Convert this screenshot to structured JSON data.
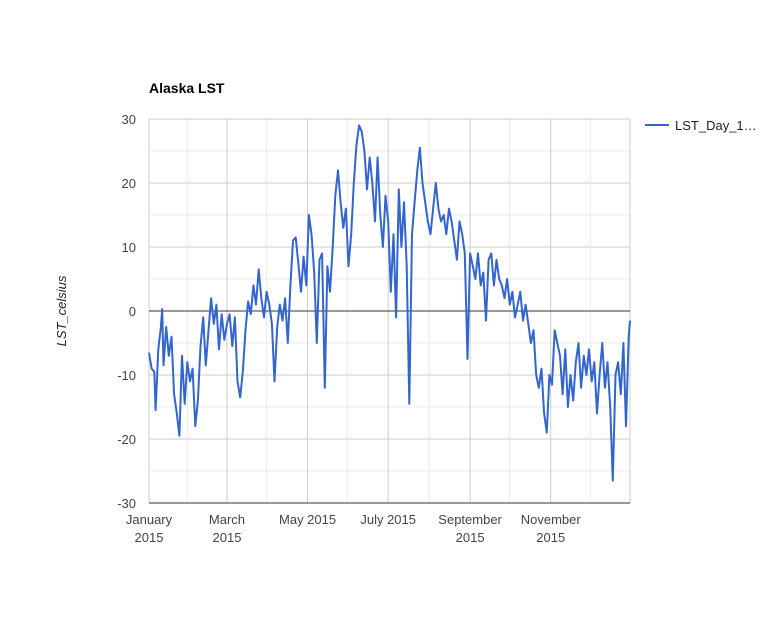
{
  "chart_data": {
    "type": "line",
    "title": "Alaska LST",
    "xlabel": "",
    "ylabel": "LST_celsius",
    "ylim": [
      -30,
      30
    ],
    "yticks": [
      "30",
      "20",
      "10",
      "0",
      "-10",
      "-20",
      "-30"
    ],
    "xlim": [
      "2015-01-01",
      "2015-12-31"
    ],
    "xticks": [
      {
        "date": "2015-01-01",
        "line1": "January",
        "line2": "2015"
      },
      {
        "date": "2015-03-01",
        "line1": "March",
        "line2": "2015"
      },
      {
        "date": "2015-05-01",
        "line1": "May 2015",
        "line2": ""
      },
      {
        "date": "2015-07-01",
        "line1": "July 2015",
        "line2": ""
      },
      {
        "date": "2015-09-01",
        "line1": "September",
        "line2": "2015"
      },
      {
        "date": "2015-11-01",
        "line1": "November",
        "line2": "2015"
      }
    ],
    "grid": true,
    "legend_position": "right",
    "series": [
      {
        "name": "LST_Day_1…",
        "color": "#3366cc",
        "points": [
          [
            "2015-01-01",
            -6.5
          ],
          [
            "2015-01-03",
            -9.0
          ],
          [
            "2015-01-05",
            -9.5
          ],
          [
            "2015-01-06",
            -15.5
          ],
          [
            "2015-01-08",
            -6.0
          ],
          [
            "2015-01-10",
            -2.5
          ],
          [
            "2015-01-11",
            0.3
          ],
          [
            "2015-01-12",
            -8.5
          ],
          [
            "2015-01-14",
            -2.5
          ],
          [
            "2015-01-16",
            -7.0
          ],
          [
            "2015-01-18",
            -4.0
          ],
          [
            "2015-01-20",
            -13.0
          ],
          [
            "2015-01-22",
            -16.0
          ],
          [
            "2015-01-24",
            -19.5
          ],
          [
            "2015-01-26",
            -7.0
          ],
          [
            "2015-01-28",
            -14.5
          ],
          [
            "2015-01-30",
            -8.0
          ],
          [
            "2015-02-01",
            -11.0
          ],
          [
            "2015-02-03",
            -9.0
          ],
          [
            "2015-02-05",
            -18.0
          ],
          [
            "2015-02-07",
            -14.0
          ],
          [
            "2015-02-09",
            -5.5
          ],
          [
            "2015-02-11",
            -1.0
          ],
          [
            "2015-02-13",
            -8.5
          ],
          [
            "2015-02-15",
            -3.0
          ],
          [
            "2015-02-17",
            2.0
          ],
          [
            "2015-02-19",
            -2.0
          ],
          [
            "2015-02-21",
            1.0
          ],
          [
            "2015-02-23",
            -6.0
          ],
          [
            "2015-02-25",
            -0.5
          ],
          [
            "2015-02-27",
            -4.5
          ],
          [
            "2015-03-01",
            -2.0
          ],
          [
            "2015-03-03",
            -0.5
          ],
          [
            "2015-03-05",
            -5.5
          ],
          [
            "2015-03-07",
            -1.0
          ],
          [
            "2015-03-09",
            -11.0
          ],
          [
            "2015-03-11",
            -13.5
          ],
          [
            "2015-03-13",
            -9.5
          ],
          [
            "2015-03-15",
            -3.0
          ],
          [
            "2015-03-17",
            1.5
          ],
          [
            "2015-03-19",
            -0.5
          ],
          [
            "2015-03-21",
            4.0
          ],
          [
            "2015-03-23",
            1.0
          ],
          [
            "2015-03-25",
            6.5
          ],
          [
            "2015-03-27",
            2.0
          ],
          [
            "2015-03-29",
            -1.0
          ],
          [
            "2015-03-31",
            3.0
          ],
          [
            "2015-04-02",
            1.0
          ],
          [
            "2015-04-04",
            -2.0
          ],
          [
            "2015-04-06",
            -11.0
          ],
          [
            "2015-04-08",
            -2.5
          ],
          [
            "2015-04-10",
            1.0
          ],
          [
            "2015-04-12",
            -1.5
          ],
          [
            "2015-04-14",
            2.0
          ],
          [
            "2015-04-16",
            -5.0
          ],
          [
            "2015-04-18",
            4.0
          ],
          [
            "2015-04-20",
            11.0
          ],
          [
            "2015-04-22",
            11.5
          ],
          [
            "2015-04-24",
            7.5
          ],
          [
            "2015-04-26",
            3.0
          ],
          [
            "2015-04-28",
            8.5
          ],
          [
            "2015-04-30",
            4.0
          ],
          [
            "2015-05-02",
            15.0
          ],
          [
            "2015-05-04",
            12.0
          ],
          [
            "2015-05-06",
            6.0
          ],
          [
            "2015-05-08",
            -5.0
          ],
          [
            "2015-05-10",
            8.0
          ],
          [
            "2015-05-12",
            9.0
          ],
          [
            "2015-05-14",
            -12.0
          ],
          [
            "2015-05-16",
            7.0
          ],
          [
            "2015-05-18",
            3.0
          ],
          [
            "2015-05-20",
            10.0
          ],
          [
            "2015-05-22",
            18.0
          ],
          [
            "2015-05-24",
            22.0
          ],
          [
            "2015-05-26",
            17.0
          ],
          [
            "2015-05-28",
            13.0
          ],
          [
            "2015-05-30",
            16.0
          ],
          [
            "2015-06-01",
            7.0
          ],
          [
            "2015-06-03",
            12.0
          ],
          [
            "2015-06-05",
            20.0
          ],
          [
            "2015-06-07",
            26.0
          ],
          [
            "2015-06-09",
            29.0
          ],
          [
            "2015-06-11",
            28.0
          ],
          [
            "2015-06-13",
            25.0
          ],
          [
            "2015-06-15",
            19.0
          ],
          [
            "2015-06-17",
            24.0
          ],
          [
            "2015-06-19",
            20.0
          ],
          [
            "2015-06-21",
            14.0
          ],
          [
            "2015-06-23",
            24.0
          ],
          [
            "2015-06-25",
            15.0
          ],
          [
            "2015-06-27",
            10.0
          ],
          [
            "2015-06-29",
            18.0
          ],
          [
            "2015-07-01",
            14.0
          ],
          [
            "2015-07-03",
            3.0
          ],
          [
            "2015-07-05",
            12.0
          ],
          [
            "2015-07-07",
            -1.0
          ],
          [
            "2015-07-09",
            19.0
          ],
          [
            "2015-07-11",
            10.0
          ],
          [
            "2015-07-13",
            17.0
          ],
          [
            "2015-07-15",
            7.0
          ],
          [
            "2015-07-17",
            -14.5
          ],
          [
            "2015-07-19",
            12.0
          ],
          [
            "2015-07-21",
            17.0
          ],
          [
            "2015-07-23",
            22.0
          ],
          [
            "2015-07-25",
            25.5
          ],
          [
            "2015-07-27",
            20.0
          ],
          [
            "2015-07-29",
            17.0
          ],
          [
            "2015-07-31",
            14.0
          ],
          [
            "2015-08-02",
            12.0
          ],
          [
            "2015-08-04",
            16.0
          ],
          [
            "2015-08-06",
            20.0
          ],
          [
            "2015-08-08",
            16.0
          ],
          [
            "2015-08-10",
            14.0
          ],
          [
            "2015-08-12",
            15.0
          ],
          [
            "2015-08-14",
            12.0
          ],
          [
            "2015-08-16",
            16.0
          ],
          [
            "2015-08-18",
            14.0
          ],
          [
            "2015-08-20",
            11.0
          ],
          [
            "2015-08-22",
            8.0
          ],
          [
            "2015-08-24",
            14.0
          ],
          [
            "2015-08-26",
            12.0
          ],
          [
            "2015-08-28",
            9.0
          ],
          [
            "2015-08-30",
            -7.5
          ],
          [
            "2015-09-01",
            9.0
          ],
          [
            "2015-09-03",
            7.0
          ],
          [
            "2015-09-05",
            5.0
          ],
          [
            "2015-09-07",
            9.0
          ],
          [
            "2015-09-09",
            4.0
          ],
          [
            "2015-09-11",
            6.0
          ],
          [
            "2015-09-13",
            -1.5
          ],
          [
            "2015-09-15",
            8.0
          ],
          [
            "2015-09-17",
            9.0
          ],
          [
            "2015-09-19",
            4.0
          ],
          [
            "2015-09-21",
            8.0
          ],
          [
            "2015-09-23",
            5.0
          ],
          [
            "2015-09-25",
            4.0
          ],
          [
            "2015-09-27",
            2.0
          ],
          [
            "2015-09-29",
            5.0
          ],
          [
            "2015-10-01",
            1.0
          ],
          [
            "2015-10-03",
            3.0
          ],
          [
            "2015-10-05",
            -1.0
          ],
          [
            "2015-10-07",
            1.0
          ],
          [
            "2015-10-09",
            3.0
          ],
          [
            "2015-10-11",
            -1.5
          ],
          [
            "2015-10-13",
            1.0
          ],
          [
            "2015-10-15",
            -2.0
          ],
          [
            "2015-10-17",
            -5.0
          ],
          [
            "2015-10-19",
            -3.0
          ],
          [
            "2015-10-21",
            -10.0
          ],
          [
            "2015-10-23",
            -12.0
          ],
          [
            "2015-10-25",
            -9.0
          ],
          [
            "2015-10-27",
            -16.0
          ],
          [
            "2015-10-29",
            -19.0
          ],
          [
            "2015-10-31",
            -10.0
          ],
          [
            "2015-11-02",
            -11.5
          ],
          [
            "2015-11-04",
            -3.0
          ],
          [
            "2015-11-06",
            -5.0
          ],
          [
            "2015-11-08",
            -7.0
          ],
          [
            "2015-11-10",
            -13.0
          ],
          [
            "2015-11-12",
            -6.0
          ],
          [
            "2015-11-14",
            -15.0
          ],
          [
            "2015-11-16",
            -10.0
          ],
          [
            "2015-11-18",
            -14.0
          ],
          [
            "2015-11-20",
            -8.0
          ],
          [
            "2015-11-22",
            -5.0
          ],
          [
            "2015-11-24",
            -12.0
          ],
          [
            "2015-11-26",
            -7.0
          ],
          [
            "2015-11-28",
            -10.0
          ],
          [
            "2015-11-30",
            -6.0
          ],
          [
            "2015-12-02",
            -11.0
          ],
          [
            "2015-12-04",
            -8.0
          ],
          [
            "2015-12-06",
            -16.0
          ],
          [
            "2015-12-08",
            -10.0
          ],
          [
            "2015-12-10",
            -5.0
          ],
          [
            "2015-12-12",
            -12.0
          ],
          [
            "2015-12-14",
            -8.0
          ],
          [
            "2015-12-16",
            -15.0
          ],
          [
            "2015-12-18",
            -26.5
          ],
          [
            "2015-12-20",
            -10.0
          ],
          [
            "2015-12-22",
            -8.0
          ],
          [
            "2015-12-24",
            -13.0
          ],
          [
            "2015-12-26",
            -5.0
          ],
          [
            "2015-12-28",
            -18.0
          ],
          [
            "2015-12-30",
            -4.0
          ],
          [
            "2015-12-31",
            -1.5
          ]
        ]
      }
    ]
  }
}
